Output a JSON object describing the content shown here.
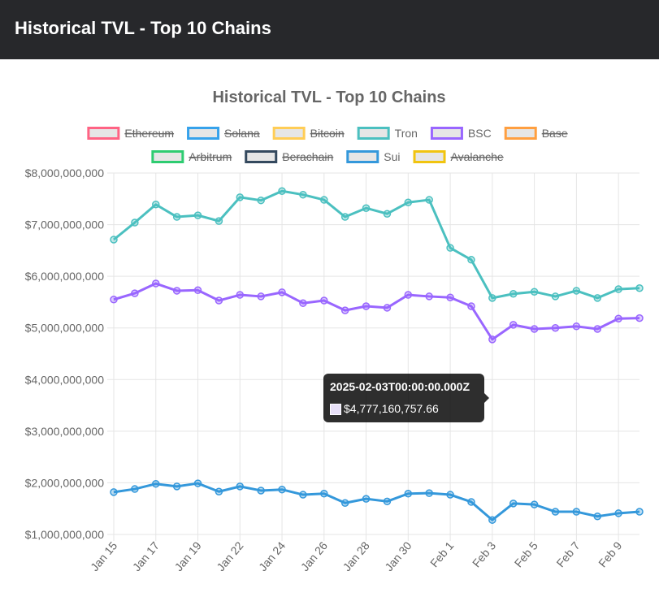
{
  "header": {
    "title": "Historical TVL - Top 10 Chains"
  },
  "chart_data": {
    "type": "line",
    "title": "Historical TVL - Top 10 Chains",
    "xlabel": "",
    "ylabel": "",
    "ylim": [
      1000000000,
      8000000000
    ],
    "y_ticks": [
      "$8,000,000,000",
      "$7,000,000,000",
      "$6,000,000,000",
      "$5,000,000,000",
      "$4,000,000,000",
      "$3,000,000,000",
      "$2,000,000,000",
      "$1,000,000,000"
    ],
    "x": [
      "Jan 15",
      "Jan 16",
      "Jan 17",
      "Jan 18",
      "Jan 19",
      "Jan 21",
      "Jan 22",
      "Jan 23",
      "Jan 24",
      "Jan 25",
      "Jan 26",
      "Jan 27",
      "Jan 28",
      "Jan 29",
      "Jan 30",
      "Jan 31",
      "Feb 1",
      "Feb 2",
      "Feb 3",
      "Feb 4",
      "Feb 5",
      "Feb 6",
      "Feb 7",
      "Feb 8",
      "Feb 9",
      "Feb 10"
    ],
    "x_tick_labels": [
      "Jan 15",
      "Jan 17",
      "Jan 19",
      "Jan 22",
      "Jan 24",
      "Jan 26",
      "Jan 28",
      "Jan 30",
      "Feb 1",
      "Feb 3",
      "Feb 5",
      "Feb 7",
      "Feb 9"
    ],
    "grid": true,
    "legend_position": "top",
    "legend": [
      {
        "name": "Ethereum",
        "color": "#ff6384",
        "hidden": true
      },
      {
        "name": "Solana",
        "color": "#36a2eb",
        "hidden": true
      },
      {
        "name": "Bitcoin",
        "color": "#ffcd56",
        "hidden": true
      },
      {
        "name": "Tron",
        "color": "#4bc0c0",
        "hidden": false
      },
      {
        "name": "BSC",
        "color": "#9966ff",
        "hidden": false
      },
      {
        "name": "Base",
        "color": "#ff9f40",
        "hidden": true
      },
      {
        "name": "Arbitrum",
        "color": "#2ecc71",
        "hidden": true
      },
      {
        "name": "Berachain",
        "color": "#34495e",
        "hidden": true
      },
      {
        "name": "Sui",
        "color": "#3498db",
        "hidden": false
      },
      {
        "name": "Avalanche",
        "color": "#f1c40f",
        "hidden": true
      }
    ],
    "series": [
      {
        "name": "Tron",
        "color": "#4bc0c0",
        "values": [
          6710000000.0,
          7040000000.0,
          7390000000.0,
          7150000000.0,
          7180000000.0,
          7070000000.0,
          7530000000.0,
          7470000000.0,
          7650000000.0,
          7580000000.0,
          7480000000.0,
          7150000000.0,
          7320000000.0,
          7210000000.0,
          7430000000.0,
          7480000000.0,
          6550000000.0,
          6320000000.0,
          5580000000.0,
          5660000000.0,
          5700000000.0,
          5610000000.0,
          5720000000.0,
          5580000000.0,
          5750000000.0,
          5770000000.0
        ]
      },
      {
        "name": "BSC",
        "color": "#9966ff",
        "values": [
          5550000000.0,
          5670000000.0,
          5860000000.0,
          5720000000.0,
          5730000000.0,
          5530000000.0,
          5640000000.0,
          5610000000.0,
          5690000000.0,
          5480000000.0,
          5530000000.0,
          5340000000.0,
          5420000000.0,
          5390000000.0,
          5640000000.0,
          5610000000.0,
          5590000000.0,
          5420000000.0,
          4777160757.66,
          5060000000.0,
          4980000000.0,
          5000000000.0,
          5030000000.0,
          4980000000.0,
          5180000000.0,
          5190000000.0
        ]
      },
      {
        "name": "Sui",
        "color": "#3498db",
        "values": [
          1820000000.0,
          1880000000.0,
          1980000000.0,
          1930000000.0,
          1990000000.0,
          1830000000.0,
          1930000000.0,
          1850000000.0,
          1870000000.0,
          1770000000.0,
          1790000000.0,
          1610000000.0,
          1690000000.0,
          1640000000.0,
          1790000000.0,
          1800000000.0,
          1770000000.0,
          1630000000.0,
          1280000000.0,
          1600000000.0,
          1580000000.0,
          1440000000.0,
          1440000000.0,
          1350000000.0,
          1410000000.0,
          1440000000.0
        ]
      }
    ],
    "tooltip": {
      "title": "2025-02-03T00:00:00.000Z",
      "value": "$4,777,160,757.66",
      "series": "BSC"
    }
  }
}
